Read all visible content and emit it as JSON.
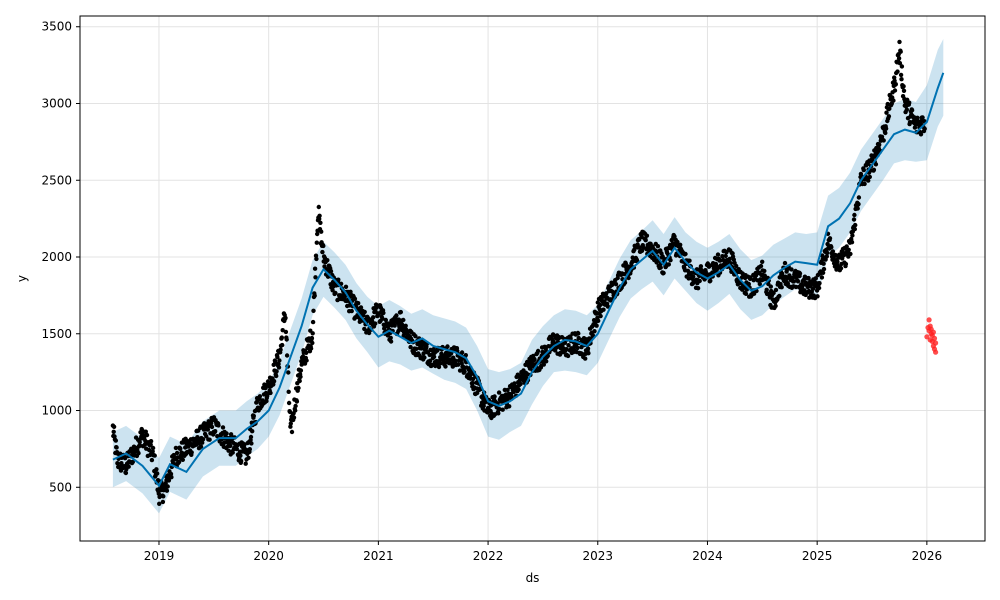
{
  "chart_data": {
    "type": "scatter",
    "title": "",
    "xlabel": "ds",
    "ylabel": "y",
    "xlim": [
      2018.28,
      2026.53
    ],
    "ylim": [
      150,
      3570
    ],
    "x_ticks": [
      2019,
      2020,
      2021,
      2022,
      2023,
      2024,
      2025,
      2026
    ],
    "x_tick_labels": [
      "2019",
      "2020",
      "2021",
      "2022",
      "2023",
      "2024",
      "2025",
      "2026"
    ],
    "y_ticks": [
      500,
      1000,
      1500,
      2000,
      2500,
      3000,
      3500
    ],
    "y_tick_labels": [
      "500",
      "1000",
      "1500",
      "2000",
      "2500",
      "3000",
      "3500"
    ],
    "grid": true,
    "legend": "none",
    "colors": {
      "observed": "#000000",
      "forecast_line": "#0072B2",
      "uncertainty_band": "#0072B2",
      "test_points": "#ff2020"
    },
    "forecast": {
      "name": "",
      "x": [
        2018.58,
        2018.7,
        2018.85,
        2019.0,
        2019.1,
        2019.25,
        2019.4,
        2019.55,
        2019.7,
        2019.8,
        2019.9,
        2020.0,
        2020.1,
        2020.2,
        2020.3,
        2020.4,
        2020.5,
        2020.6,
        2020.7,
        2020.8,
        2020.9,
        2021.0,
        2021.1,
        2021.2,
        2021.3,
        2021.4,
        2021.5,
        2021.6,
        2021.7,
        2021.8,
        2021.9,
        2022.0,
        2022.1,
        2022.2,
        2022.3,
        2022.4,
        2022.5,
        2022.6,
        2022.7,
        2022.8,
        2022.9,
        2023.0,
        2023.1,
        2023.2,
        2023.3,
        2023.4,
        2023.5,
        2023.6,
        2023.7,
        2023.8,
        2023.9,
        2024.0,
        2024.1,
        2024.2,
        2024.3,
        2024.4,
        2024.5,
        2024.6,
        2024.7,
        2024.8,
        2024.9,
        2025.0,
        2025.1,
        2025.2,
        2025.3,
        2025.4,
        2025.5,
        2025.6,
        2025.7,
        2025.8,
        2025.9,
        2026.0,
        2026.1,
        2026.15
      ],
      "y": [
        680,
        720,
        640,
        510,
        650,
        600,
        750,
        820,
        820,
        880,
        930,
        1000,
        1150,
        1350,
        1550,
        1800,
        1920,
        1850,
        1770,
        1650,
        1560,
        1480,
        1520,
        1480,
        1440,
        1470,
        1420,
        1400,
        1380,
        1340,
        1220,
        1060,
        1030,
        1060,
        1110,
        1250,
        1350,
        1420,
        1460,
        1450,
        1420,
        1500,
        1650,
        1800,
        1920,
        1980,
        2040,
        1950,
        2060,
        1970,
        1900,
        1860,
        1900,
        1950,
        1850,
        1780,
        1810,
        1880,
        1930,
        1970,
        1960,
        1950,
        2200,
        2250,
        2350,
        2500,
        2600,
        2700,
        2800,
        2830,
        2810,
        2880,
        3100,
        3200
      ],
      "lower": [
        500,
        540,
        460,
        330,
        470,
        420,
        570,
        640,
        640,
        700,
        750,
        830,
        970,
        1170,
        1370,
        1620,
        1740,
        1670,
        1590,
        1470,
        1380,
        1280,
        1320,
        1300,
        1260,
        1280,
        1240,
        1200,
        1180,
        1140,
        1000,
        830,
        810,
        860,
        900,
        1040,
        1160,
        1250,
        1260,
        1250,
        1230,
        1310,
        1460,
        1610,
        1730,
        1790,
        1840,
        1750,
        1860,
        1780,
        1700,
        1650,
        1700,
        1760,
        1660,
        1590,
        1620,
        1690,
        1740,
        1790,
        1770,
        1740,
        2000,
        2060,
        2160,
        2300,
        2400,
        2500,
        2610,
        2630,
        2620,
        2630,
        2850,
        2920
      ],
      "upper": [
        860,
        900,
        820,
        690,
        830,
        780,
        930,
        1000,
        1000,
        1060,
        1110,
        1180,
        1330,
        1530,
        1730,
        1980,
        2100,
        2030,
        1950,
        1830,
        1740,
        1680,
        1720,
        1680,
        1630,
        1660,
        1620,
        1600,
        1580,
        1540,
        1420,
        1270,
        1250,
        1270,
        1310,
        1460,
        1550,
        1620,
        1660,
        1650,
        1620,
        1690,
        1840,
        1990,
        2110,
        2170,
        2240,
        2150,
        2260,
        2160,
        2100,
        2060,
        2100,
        2150,
        2050,
        1980,
        2010,
        2080,
        2120,
        2160,
        2150,
        2160,
        2400,
        2450,
        2550,
        2700,
        2800,
        2900,
        3000,
        3030,
        3010,
        3120,
        3350,
        3420
      ]
    },
    "observed": {
      "name": "",
      "anchors_x": [
        2018.58,
        2018.62,
        2018.7,
        2018.85,
        2018.95,
        2019.0,
        2019.05,
        2019.15,
        2019.3,
        2019.5,
        2019.65,
        2019.8,
        2019.9,
        2020.0,
        2020.1,
        2020.15,
        2020.2,
        2020.25,
        2020.3,
        2020.4,
        2020.45,
        2020.5,
        2020.6,
        2020.7,
        2020.8,
        2020.9,
        2021.0,
        2021.1,
        2021.2,
        2021.3,
        2021.4,
        2021.5,
        2021.6,
        2021.7,
        2021.8,
        2021.9,
        2022.0,
        2022.1,
        2022.2,
        2022.3,
        2022.4,
        2022.5,
        2022.6,
        2022.7,
        2022.8,
        2022.9,
        2023.0,
        2023.1,
        2023.2,
        2023.3,
        2023.4,
        2023.5,
        2023.6,
        2023.7,
        2023.8,
        2023.9,
        2024.0,
        2024.1,
        2024.2,
        2024.3,
        2024.4,
        2024.5,
        2024.6,
        2024.7,
        2024.8,
        2024.9,
        2025.0,
        2025.1,
        2025.2,
        2025.3,
        2025.4,
        2025.5,
        2025.6,
        2025.7,
        2025.75,
        2025.8,
        2025.9,
        2025.98
      ],
      "anchors_y": [
        880,
        680,
        640,
        840,
        700,
        460,
        480,
        700,
        780,
        900,
        780,
        700,
        1050,
        1150,
        1350,
        1650,
        850,
        1100,
        1300,
        1500,
        2300,
        2000,
        1800,
        1750,
        1650,
        1550,
        1650,
        1500,
        1600,
        1450,
        1400,
        1350,
        1350,
        1350,
        1300,
        1150,
        1000,
        1050,
        1100,
        1200,
        1300,
        1350,
        1450,
        1400,
        1450,
        1400,
        1650,
        1750,
        1850,
        1950,
        2100,
        2050,
        1950,
        2100,
        1950,
        1850,
        1900,
        1950,
        2000,
        1850,
        1800,
        1900,
        1700,
        1900,
        1850,
        1800,
        1800,
        2100,
        1950,
        2050,
        2500,
        2600,
        2800,
        3100,
        3350,
        3000,
        2850,
        2880
      ],
      "x_range": [
        2018.58,
        2025.98
      ],
      "count": 2000,
      "value_range": [
        390,
        3420
      ]
    },
    "test": {
      "name": "",
      "x": [
        2026.0,
        2026.01,
        2026.02,
        2026.02,
        2026.03,
        2026.03,
        2026.04,
        2026.04,
        2026.05,
        2026.05,
        2026.06,
        2026.06,
        2026.07,
        2026.07,
        2026.08,
        2026.08
      ],
      "y": [
        1480,
        1540,
        1590,
        1520,
        1460,
        1550,
        1500,
        1530,
        1450,
        1490,
        1420,
        1510,
        1400,
        1470,
        1380,
        1440
      ]
    }
  }
}
